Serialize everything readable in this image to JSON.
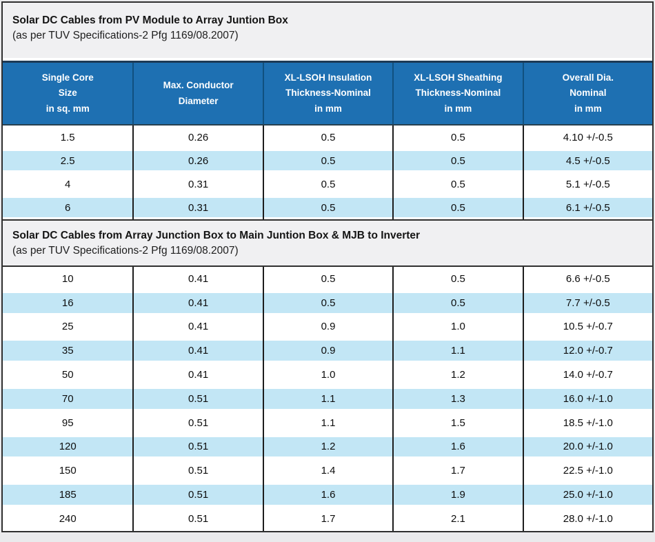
{
  "colors": {
    "header_bg": "#1e70b2",
    "header_top_border": "#1d3a55",
    "header_divider": "#10507f",
    "stripe_blue": "#c2e6f5",
    "title_band_bg": "#f0f0f2",
    "grid_line": "#1c1c1c",
    "outer_border": "#2f2f2f"
  },
  "header": {
    "cols": [
      {
        "lines": [
          "Single Core",
          "Size",
          "in sq. mm"
        ]
      },
      {
        "lines": [
          "Max. Conductor",
          "Diameter"
        ]
      },
      {
        "lines": [
          "XL-LSOH Insulation",
          "Thickness-Nominal",
          "in mm"
        ]
      },
      {
        "lines": [
          "XL-LSOH Sheathing",
          "Thickness-Nominal",
          "in mm"
        ]
      },
      {
        "lines": [
          "Overall Dia.",
          "Nominal",
          "in mm"
        ]
      }
    ]
  },
  "section1": {
    "title": "Solar DC Cables from PV Module to Array Juntion Box",
    "subtitle": "(as per TUV Specifications-2 Pfg 1169/08.2007)",
    "rows": [
      [
        "1.5",
        "0.26",
        "0.5",
        "0.5",
        "4.10 +/-0.5"
      ],
      [
        "2.5",
        "0.26",
        "0.5",
        "0.5",
        "4.5 +/-0.5"
      ],
      [
        "4",
        "0.31",
        "0.5",
        "0.5",
        "5.1 +/-0.5"
      ],
      [
        "6",
        "0.31",
        "0.5",
        "0.5",
        "6.1 +/-0.5"
      ]
    ]
  },
  "section2": {
    "title": "Solar DC Cables from Array Junction Box to Main Juntion Box & MJB to Inverter",
    "subtitle": "(as per TUV Specifications-2 Pfg 1169/08.2007)",
    "rows": [
      [
        "10",
        "0.41",
        "0.5",
        "0.5",
        "6.6 +/-0.5"
      ],
      [
        "16",
        "0.41",
        "0.5",
        "0.5",
        "7.7 +/-0.5"
      ],
      [
        "25",
        "0.41",
        "0.9",
        "1.0",
        "10.5 +/-0.7"
      ],
      [
        "35",
        "0.41",
        "0.9",
        "1.1",
        "12.0 +/-0.7"
      ],
      [
        "50",
        "0.41",
        "1.0",
        "1.2",
        "14.0 +/-0.7"
      ],
      [
        "70",
        "0.51",
        "1.1",
        "1.3",
        "16.0 +/-1.0"
      ],
      [
        "95",
        "0.51",
        "1.1",
        "1.5",
        "18.5 +/-1.0"
      ],
      [
        "120",
        "0.51",
        "1.2",
        "1.6",
        "20.0 +/-1.0"
      ],
      [
        "150",
        "0.51",
        "1.4",
        "1.7",
        "22.5 +/-1.0"
      ],
      [
        "185",
        "0.51",
        "1.6",
        "1.9",
        "25.0 +/-1.0"
      ],
      [
        "240",
        "0.51",
        "1.7",
        "2.1",
        "28.0 +/-1.0"
      ]
    ]
  }
}
